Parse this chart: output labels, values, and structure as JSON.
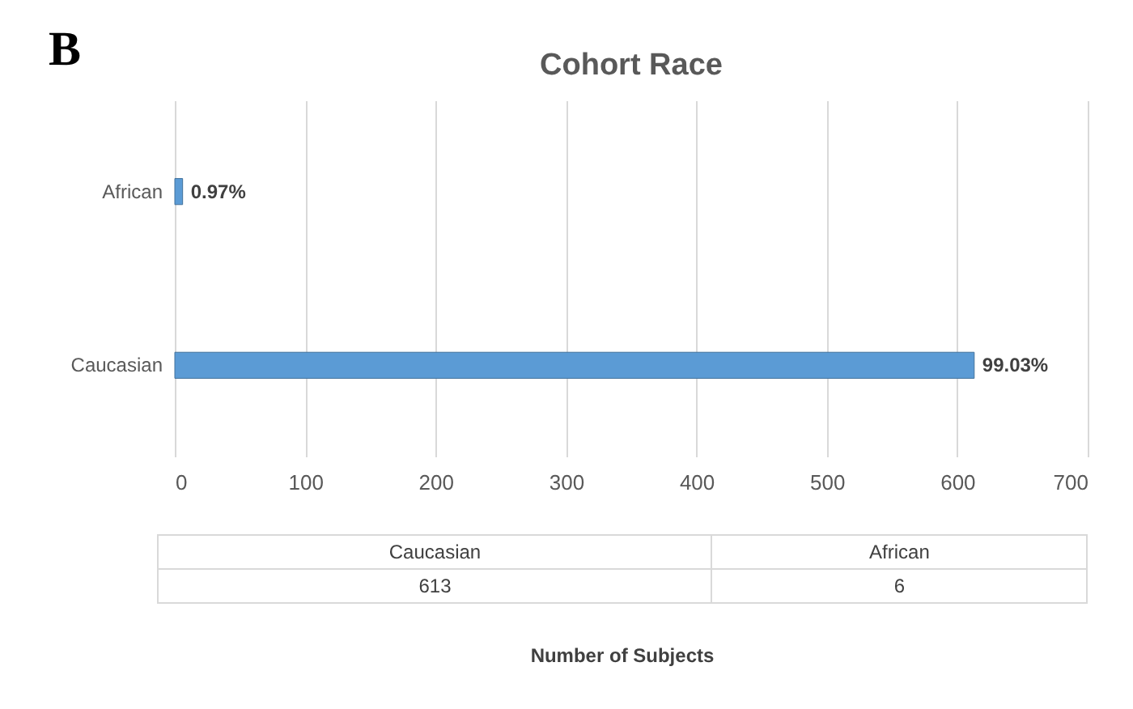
{
  "chart_data": {
    "type": "bar",
    "orientation": "horizontal",
    "title": "Cohort Race",
    "annotations": [
      "B",
      {
        "text": "0.97%",
        "x": 6,
        "y": "African"
      },
      {
        "text": "99.03%",
        "x": 613,
        "y": "Caucasian"
      },
      "613",
      "6",
      "Number of Subjects"
    ],
    "categories": [
      "African",
      "Caucasian"
    ],
    "values": [
      6,
      613
    ],
    "color": "#5b9bd5",
    "xlim": [
      0,
      700
    ],
    "xticks": [
      0,
      100,
      200,
      300,
      400,
      500,
      600,
      700
    ],
    "grid": "x"
  }
}
